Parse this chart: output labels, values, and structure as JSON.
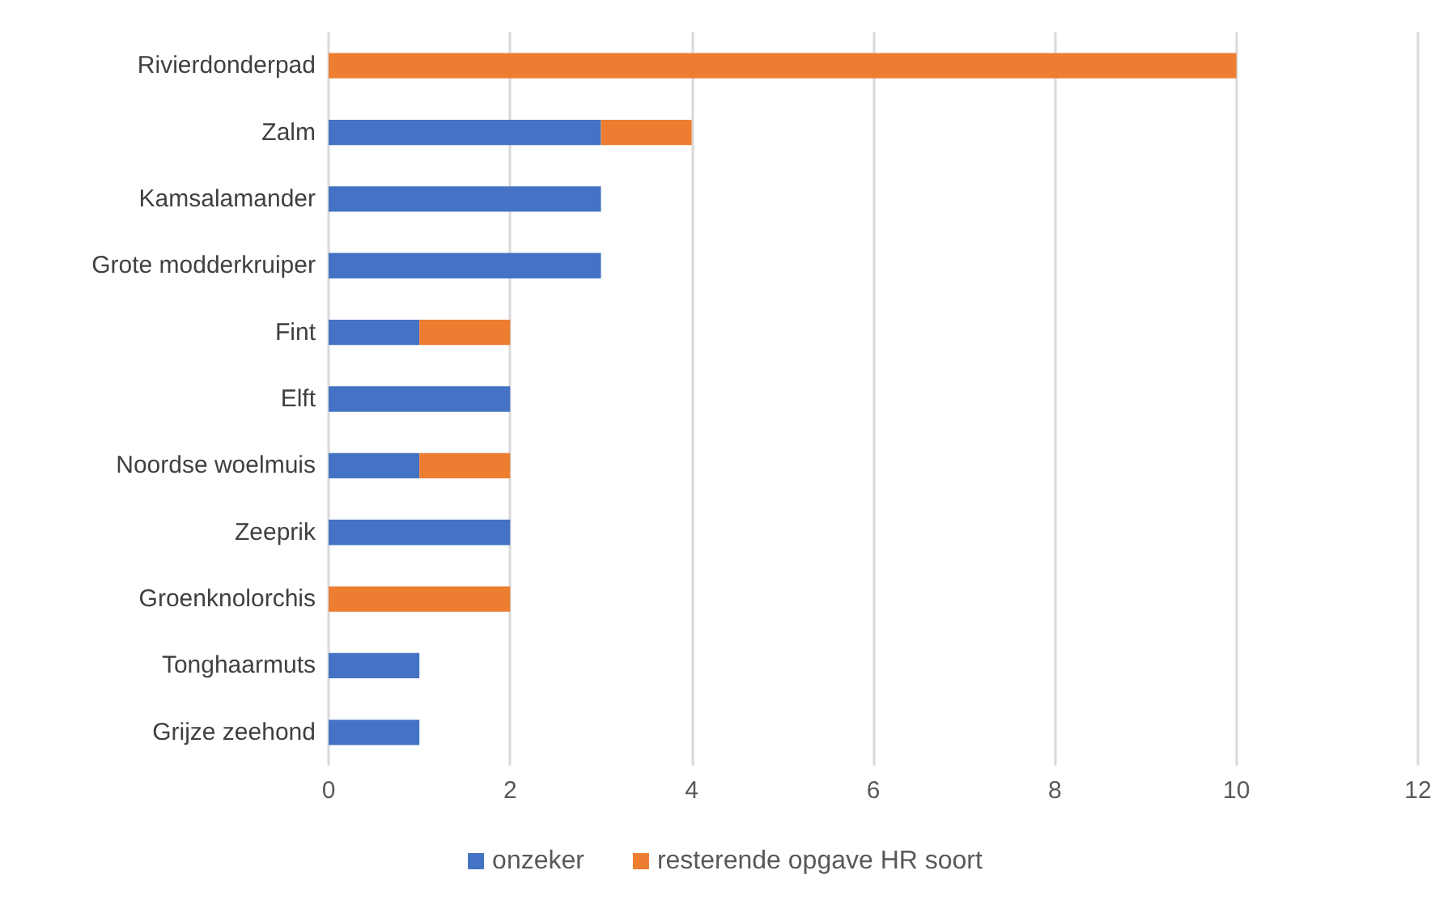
{
  "chart_data": {
    "type": "bar",
    "orientation": "horizontal",
    "stacked": true,
    "categories": [
      "Rivierdonderpad",
      "Zalm",
      "Kamsalamander",
      "Grote modderkruiper",
      "Fint",
      "Elft",
      "Noordse woelmuis",
      "Zeeprik",
      "Groenknolorchis",
      "Tonghaarmuts",
      "Grijze zeehond"
    ],
    "series": [
      {
        "name": "onzeker",
        "color": "#4472c4",
        "values": [
          null,
          3,
          3,
          3,
          1,
          2,
          1,
          2,
          null,
          1,
          1
        ]
      },
      {
        "name": "resterende opgave HR soort",
        "color": "#ed7d31",
        "values": [
          10,
          1,
          null,
          null,
          1,
          null,
          1,
          null,
          2,
          null,
          null
        ]
      }
    ],
    "xlim": [
      0,
      12
    ],
    "xticks": [
      0,
      2,
      4,
      6,
      8,
      10,
      12
    ],
    "grid": "x",
    "legend": "bottom"
  }
}
